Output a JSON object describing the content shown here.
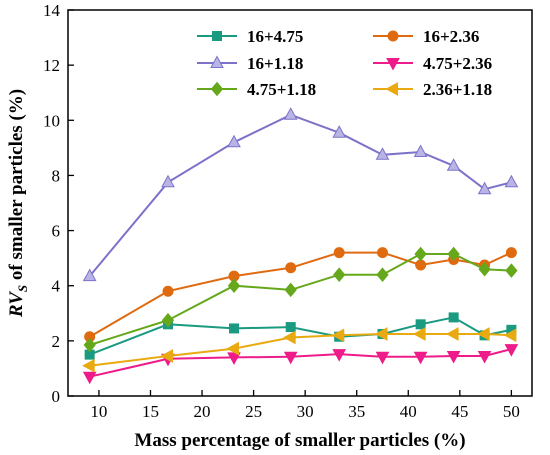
{
  "chart_data": {
    "type": "line",
    "title": "",
    "xlabel": "Mass percentage of smaller particles (%)",
    "ylabel_parts": {
      "main": "RV",
      "sub": "S",
      "rest": " of smaller particles (%)"
    },
    "xlim": [
      7,
      52
    ],
    "ylim": [
      0,
      14
    ],
    "xticks": [
      10,
      15,
      20,
      25,
      30,
      35,
      40,
      45,
      50
    ],
    "yticks": [
      0,
      2,
      4,
      6,
      8,
      10,
      12,
      14
    ],
    "grid": false,
    "legend": "top-right, two columns",
    "x": [
      9.1,
      16.7,
      23.1,
      28.6,
      33.3,
      37.5,
      41.2,
      44.4,
      47.4,
      50.0
    ],
    "series": [
      {
        "name": "16+4.75",
        "color": "#1a9a80",
        "marker": "square",
        "values": [
          1.5,
          2.6,
          2.45,
          2.5,
          2.15,
          2.25,
          2.6,
          2.85,
          2.2,
          2.4
        ]
      },
      {
        "name": "16+2.36",
        "color": "#e06a10",
        "marker": "circle",
        "values": [
          2.15,
          3.8,
          4.35,
          4.65,
          5.2,
          5.2,
          4.75,
          4.95,
          4.75,
          5.2
        ]
      },
      {
        "name": "16+1.18",
        "color": "#7c72c9",
        "marker": "triangle-up",
        "values": [
          4.35,
          7.75,
          9.2,
          10.2,
          9.55,
          8.75,
          8.85,
          8.35,
          7.5,
          7.75
        ]
      },
      {
        "name": "4.75+2.36",
        "color": "#ee1b8a",
        "marker": "triangle-down",
        "values": [
          0.7,
          1.35,
          1.4,
          1.42,
          1.52,
          1.42,
          1.42,
          1.45,
          1.45,
          1.7
        ]
      },
      {
        "name": "4.75+1.18",
        "color": "#66a81c",
        "marker": "diamond",
        "values": [
          1.85,
          2.75,
          4.0,
          3.85,
          4.4,
          4.4,
          5.15,
          5.15,
          4.6,
          4.55
        ]
      },
      {
        "name": "2.36+1.18",
        "color": "#e8aa10",
        "marker": "triangle-left",
        "values": [
          1.1,
          1.45,
          1.72,
          2.12,
          2.2,
          2.25,
          2.25,
          2.25,
          2.25,
          2.2
        ]
      }
    ]
  }
}
